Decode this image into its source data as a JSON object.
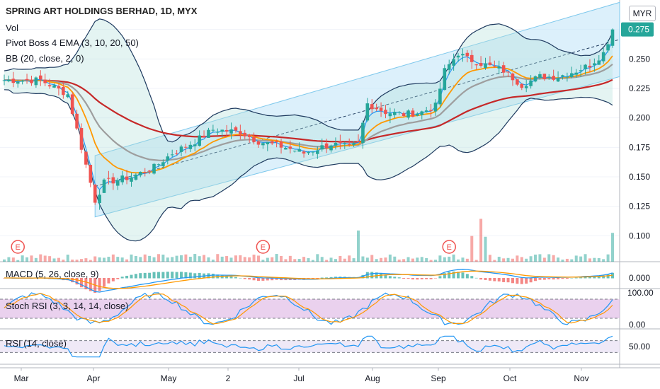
{
  "title": "SPRING ART HOLDINGS BERHAD, 1D, MYX",
  "currency": "MYR",
  "indicators": {
    "volume": "Vol",
    "ema": "Pivot Boss 4 EMA (3, 10, 20, 50)",
    "bb": "BB (20, close, 2, 0)",
    "macd": "MACD (5, 26, close, 9)",
    "stoch": "Stoch RSI (3, 3, 14, 14, close)",
    "rsi": "RSI (14, close)"
  },
  "event_marker": "E",
  "colors": {
    "up": "#26a69a",
    "down": "#ef5350",
    "ema3": "#2196f3",
    "ema10": "#ff9800",
    "ema20": "#9e9e9e",
    "ema50": "#c62828",
    "bb": "#1e3a5f",
    "channel": "#bfe4f7",
    "stoch_band": "#e1bee7",
    "rsi_band": "#ede7f6",
    "rsi_line": "#2196f3",
    "macd_line": "#2196f3",
    "signal_line": "#ff9800",
    "last_price": "#26a69a"
  },
  "chart_data": {
    "type": "candlestick",
    "title": "SPRING ART HOLDINGS BERHAD, 1D, MYX",
    "x_tick_labels": [
      "Mar",
      "Apr",
      "May",
      "2",
      "Jul",
      "Aug",
      "Sep",
      "Oct",
      "Nov"
    ],
    "price_axis": {
      "ticks": [
        "0.100",
        "0.125",
        "0.150",
        "0.175",
        "0.200",
        "0.225",
        "0.250",
        "0.275"
      ],
      "ylim": [
        0.078,
        0.3
      ]
    },
    "last_price": "0.275",
    "macd_axis": {
      "ticks": [
        "0.000"
      ]
    },
    "stoch_axis": {
      "ticks": [
        "100.00",
        "0.00"
      ],
      "ylim": [
        0,
        100
      ],
      "band": [
        20,
        80
      ]
    },
    "rsi_axis": {
      "ticks": [
        "50.00"
      ],
      "band": [
        30,
        70
      ]
    },
    "price_path": [
      [
        0,
        0.232
      ],
      [
        8,
        0.232
      ],
      [
        14,
        0.22
      ],
      [
        17,
        0.175
      ],
      [
        20,
        0.13
      ],
      [
        22,
        0.145
      ],
      [
        28,
        0.15
      ],
      [
        33,
        0.158
      ],
      [
        37,
        0.17
      ],
      [
        42,
        0.18
      ],
      [
        46,
        0.19
      ],
      [
        52,
        0.188
      ],
      [
        56,
        0.18
      ],
      [
        62,
        0.175
      ],
      [
        66,
        0.17
      ],
      [
        72,
        0.178
      ],
      [
        76,
        0.175
      ],
      [
        78,
        0.178
      ],
      [
        80,
        0.212
      ],
      [
        84,
        0.205
      ],
      [
        88,
        0.203
      ],
      [
        92,
        0.205
      ],
      [
        95,
        0.21
      ],
      [
        97,
        0.24
      ],
      [
        100,
        0.255
      ],
      [
        102,
        0.25
      ],
      [
        106,
        0.245
      ],
      [
        110,
        0.24
      ],
      [
        114,
        0.228
      ],
      [
        118,
        0.235
      ],
      [
        122,
        0.235
      ],
      [
        126,
        0.24
      ],
      [
        129,
        0.245
      ],
      [
        132,
        0.255
      ],
      [
        134,
        0.275
      ]
    ],
    "volume_spikes": [
      {
        "i": 78,
        "v": 0.4
      },
      {
        "i": 105,
        "v": 0.55
      },
      {
        "i": 103,
        "v": 0.33
      },
      {
        "i": 106,
        "v": 0.32
      },
      {
        "i": 134,
        "v": 0.37
      }
    ],
    "event_positions": [
      3,
      57,
      98
    ]
  }
}
